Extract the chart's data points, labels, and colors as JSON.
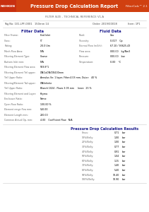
{
  "title": "Pressure Drop Calculation Report",
  "software": "FilterCalc™ 2.1",
  "subtitle_line": "FILTER SIZE - TECHNICAL REFERENCE V1.A",
  "tag_line": "Tag No: 101-LPF-0001   150mm 14",
  "order": "Order: 2019/00018",
  "item": "Item: 1P1",
  "section_filter": "Filter Data",
  "section_fluid": "Fluid Data",
  "section_results": "Pressure Drop Calculation Results",
  "filter_data": [
    [
      "Filter Frame:",
      "End Inlet"
    ],
    [
      "Class:",
      "5\""
    ],
    [
      "Rating:",
      "20.0 Um"
    ],
    [
      "Mesh Flow Area:",
      "N/A"
    ],
    [
      "Filtering Element Type:",
      "Coarse"
    ],
    [
      "Buttom Inlet mm:",
      "N/A"
    ],
    [
      "Filtering Element Flow area:",
      "569.8*1"
    ],
    [
      "Filtering Element Tail upper:",
      "DN/1xDN/DN100mm"
    ],
    [
      "Tail Upper Ratio:",
      "Annulus (In: 1 layer, Filter:4.03 mm, Outer:   40 %"
    ],
    [
      "Filtering/Element Tail upper:",
      "DN/Infinite"
    ],
    [
      "Tail Upper Ratio:",
      "Blanch 1024 - Flows 3.05 mm     Inner:  25 %"
    ],
    [
      "Filtering Element and Layer:",
      "Keyma"
    ],
    [
      "Enclosure Ratio:",
      "Name"
    ],
    [
      "Open Flow Ratio:",
      "100.00 %"
    ],
    [
      "Element range flow mm:",
      "510.00"
    ],
    [
      "Element Length mm:",
      "200.00"
    ],
    [
      "Common Actual Dp, mm:",
      "4.00    Coefficient Flow   N/A"
    ]
  ],
  "fluid_data": [
    [
      "Fluid:",
      "Gas"
    ],
    [
      "Viscosity:",
      "0.017    Cp"
    ],
    [
      "Normal Flow (m3/h):",
      "67.10 / 93625.43"
    ],
    [
      "Flow area:",
      "000.00    kg/Nm3"
    ],
    [
      "Pressure:",
      "000.00    bar"
    ],
    [
      "Temperature:",
      "0.00    °C"
    ]
  ],
  "results_data": [
    [
      "Gross:",
      "0.71   bar"
    ],
    [
      "10%/Belly:",
      "1.00   bar"
    ],
    [
      "20%/Belly:",
      "1.00   bar"
    ],
    [
      "30%/Belly:",
      "0.77   bar"
    ],
    [
      "40%/Belly:",
      "0.91   bar"
    ],
    [
      "50%/Belly:",
      "1.04   bar"
    ],
    [
      "60%/Belly:",
      "1.15   bar"
    ],
    [
      "70%/Belly:",
      "1.40   bar"
    ],
    [
      "80%/Belly:",
      "5.40   bar"
    ],
    [
      "90%/Belly:",
      "10.40   bar"
    ],
    [
      "100%/Belly:",
      "10.90   bar"
    ]
  ],
  "bg_color": "#ffffff",
  "header_bg": "#d04010",
  "logo_bg": "#c83010",
  "section_color": "#1a1a8c",
  "line_color": "#cccccc",
  "label_color": "#666666",
  "value_color": "#000000"
}
